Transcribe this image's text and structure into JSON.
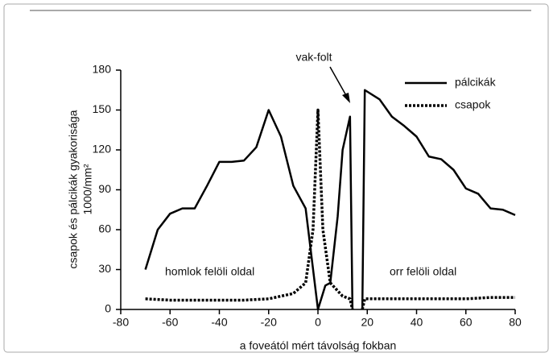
{
  "chart_data": {
    "type": "line",
    "y_label_lines": [
      "csapok és pálcikák gyakorisága",
      "1000/mm²"
    ],
    "x_label": "a foveától mért távolság fokban",
    "annotations": {
      "blind_spot": "vak-folt",
      "left_side": "homlok felöli oldal",
      "right_side": "orr felöli oldal"
    },
    "xlim": [
      -80,
      80
    ],
    "xticks": [
      -80,
      -60,
      -40,
      -20,
      0,
      20,
      40,
      60,
      80
    ],
    "ylim": [
      0,
      180
    ],
    "yticks": [
      0,
      30,
      60,
      90,
      120,
      150,
      180
    ],
    "grid": false,
    "legend": "upper right",
    "series": [
      {
        "name": "pálcikák",
        "color": "#000000",
        "style": "solid",
        "x": [
          -70,
          -65,
          -60,
          -55,
          -50,
          -45,
          -40,
          -35,
          -30,
          -25,
          -20,
          -15,
          -10,
          -5,
          0,
          3,
          5,
          8,
          10,
          13,
          14,
          16,
          18,
          19,
          25,
          30,
          35,
          40,
          45,
          50,
          55,
          60,
          65,
          70,
          75,
          80
        ],
        "values": [
          30,
          60,
          72,
          76,
          76,
          93,
          111,
          111,
          112,
          122,
          150,
          130,
          93,
          76,
          0,
          18,
          20,
          70,
          120,
          145,
          0,
          null,
          0,
          165,
          158,
          145,
          138,
          130,
          115,
          113,
          105,
          91,
          87,
          76,
          75,
          71
        ]
      },
      {
        "name": "csapok",
        "color": "#000000",
        "style": "dotted",
        "x": [
          -70,
          -60,
          -50,
          -40,
          -30,
          -20,
          -15,
          -10,
          -5,
          -2,
          0,
          2,
          5,
          10,
          13,
          14,
          16,
          18,
          19,
          30,
          40,
          50,
          60,
          70,
          80
        ],
        "values": [
          8,
          7,
          7,
          7,
          7,
          8,
          10,
          12,
          20,
          60,
          150,
          60,
          20,
          10,
          8,
          0,
          null,
          0,
          8,
          8,
          8,
          8,
          8,
          9,
          9
        ]
      }
    ]
  }
}
